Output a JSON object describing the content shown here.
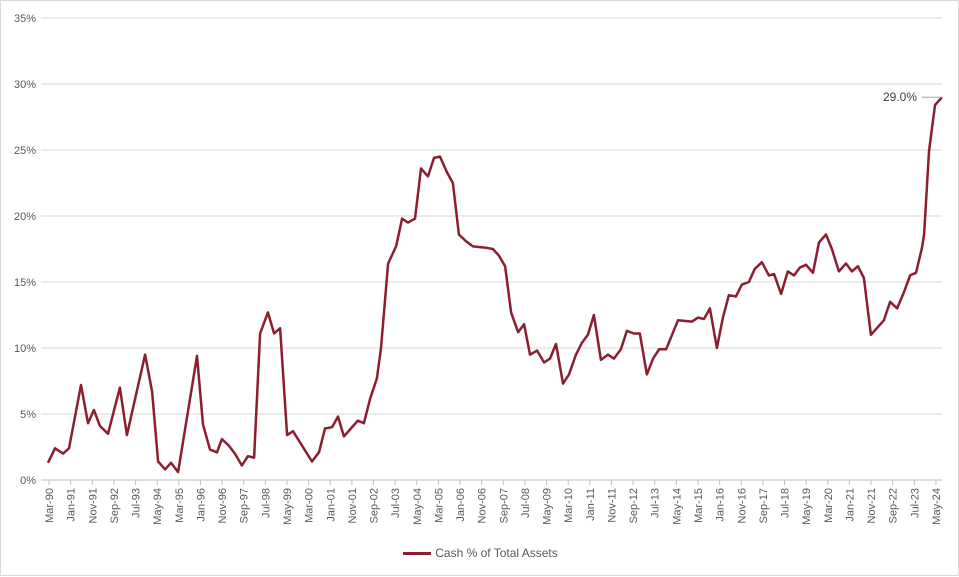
{
  "chart_data": {
    "type": "line",
    "title": "",
    "xlabel": "",
    "ylabel": "",
    "ylim": [
      0,
      35
    ],
    "y_ticks": [
      "0%",
      "5%",
      "10%",
      "15%",
      "20%",
      "25%",
      "30%",
      "35%"
    ],
    "y_tick_values": [
      0,
      5,
      10,
      15,
      20,
      25,
      30,
      35
    ],
    "x_tick_labels": [
      "Mar-90",
      "Jan-91",
      "Nov-91",
      "Sep-92",
      "Jul-93",
      "May-94",
      "Mar-95",
      "Jan-96",
      "Nov-96",
      "Sep-97",
      "Jul-98",
      "May-99",
      "Mar-00",
      "Jan-01",
      "Nov-01",
      "Sep-02",
      "Jul-03",
      "May-04",
      "Mar-05",
      "Jan-06",
      "Nov-06",
      "Sep-07",
      "Jul-08",
      "May-09",
      "Mar-10",
      "Jan-11",
      "Nov-11",
      "Sep-12",
      "Jul-13",
      "May-14",
      "Mar-15",
      "Jan-16",
      "Nov-16",
      "Sep-17",
      "Jul-18",
      "May-19",
      "Mar-20",
      "Jan-21",
      "Nov-21",
      "Sep-22",
      "Jul-23",
      "May-24"
    ],
    "x_tick_start_year": 1990.17,
    "x_tick_step_months": 10,
    "xlim": [
      1990.13,
      2024.57
    ],
    "grid": true,
    "legend_position": "bottom",
    "series": [
      {
        "name": "Cash % of Total Assets",
        "color": "#8B1E2F",
        "x": [
          1990.13,
          1990.4,
          1990.71,
          1990.94,
          1991.4,
          1991.67,
          1991.9,
          1992.13,
          1992.44,
          1992.9,
          1993.17,
          1993.87,
          1994.14,
          1994.37,
          1994.64,
          1994.87,
          1995.14,
          1995.87,
          1996.1,
          1996.37,
          1996.64,
          1996.83,
          1997.1,
          1997.33,
          1997.6,
          1997.83,
          1998.07,
          1998.3,
          1998.6,
          1998.84,
          1999.07,
          1999.34,
          1999.57,
          2000.3,
          2000.57,
          2000.8,
          2001.07,
          2001.3,
          2001.53,
          2001.8,
          2002.07,
          2002.3,
          2002.53,
          2002.8,
          2002.96,
          2003.23,
          2003.54,
          2003.77,
          2004.0,
          2004.27,
          2004.5,
          2004.77,
          2005.0,
          2005.23,
          2005.5,
          2005.73,
          2005.96,
          2006.23,
          2006.5,
          2007.0,
          2007.27,
          2007.5,
          2007.74,
          2007.97,
          2008.24,
          2008.47,
          2008.7,
          2008.97,
          2009.24,
          2009.47,
          2009.7,
          2009.97,
          2010.2,
          2010.47,
          2010.7,
          2010.93,
          2011.16,
          2011.43,
          2011.7,
          2011.93,
          2012.2,
          2012.43,
          2012.7,
          2012.93,
          2013.2,
          2013.44,
          2013.67,
          2013.94,
          2014.4,
          2014.94,
          2015.17,
          2015.4,
          2015.63,
          2015.9,
          2016.13,
          2016.36,
          2016.63,
          2016.86,
          2017.13,
          2017.36,
          2017.63,
          2017.9,
          2018.1,
          2018.37,
          2018.63,
          2018.87,
          2019.1,
          2019.33,
          2019.6,
          2019.83,
          2020.1,
          2020.33,
          2020.6,
          2020.87,
          2021.1,
          2021.33,
          2021.56,
          2021.83,
          2022.33,
          2022.57,
          2022.84,
          2023.1,
          2023.34,
          2023.57,
          2023.8,
          2023.88,
          2024.07,
          2024.3,
          2024.57
        ],
        "values": [
          1.3,
          2.4,
          2.0,
          2.4,
          7.2,
          4.3,
          5.3,
          4.1,
          3.5,
          7.0,
          3.4,
          9.5,
          6.7,
          1.4,
          0.8,
          1.3,
          0.6,
          9.4,
          4.2,
          2.3,
          2.1,
          3.1,
          2.6,
          2.0,
          1.1,
          1.8,
          1.7,
          11.1,
          12.7,
          11.1,
          11.5,
          3.4,
          3.7,
          1.4,
          2.1,
          3.9,
          4.0,
          4.8,
          3.3,
          3.9,
          4.5,
          4.3,
          6.1,
          7.7,
          10.0,
          16.4,
          17.7,
          19.8,
          19.5,
          19.8,
          23.6,
          23.0,
          24.4,
          24.5,
          23.3,
          22.5,
          18.6,
          18.1,
          17.7,
          17.6,
          17.5,
          17.0,
          16.2,
          12.7,
          11.2,
          11.8,
          9.5,
          9.8,
          8.9,
          9.2,
          10.3,
          7.3,
          8.0,
          9.5,
          10.4,
          11.0,
          12.5,
          9.1,
          9.5,
          9.2,
          9.9,
          11.3,
          11.1,
          11.1,
          8.0,
          9.2,
          9.9,
          9.9,
          12.1,
          12.0,
          12.3,
          12.2,
          13.0,
          10.0,
          12.3,
          14.0,
          13.9,
          14.8,
          15.0,
          16.0,
          16.5,
          15.5,
          15.6,
          14.1,
          15.8,
          15.5,
          16.1,
          16.3,
          15.7,
          18.0,
          18.6,
          17.5,
          15.8,
          16.4,
          15.8,
          16.2,
          15.3,
          11.0,
          12.1,
          13.5,
          13.0,
          14.2,
          15.5,
          15.7,
          17.6,
          18.6,
          24.9,
          28.4,
          29.0
        ]
      }
    ],
    "annotations": [
      {
        "text": "29.0%",
        "value": 29.0,
        "x": 2024.57
      }
    ]
  }
}
